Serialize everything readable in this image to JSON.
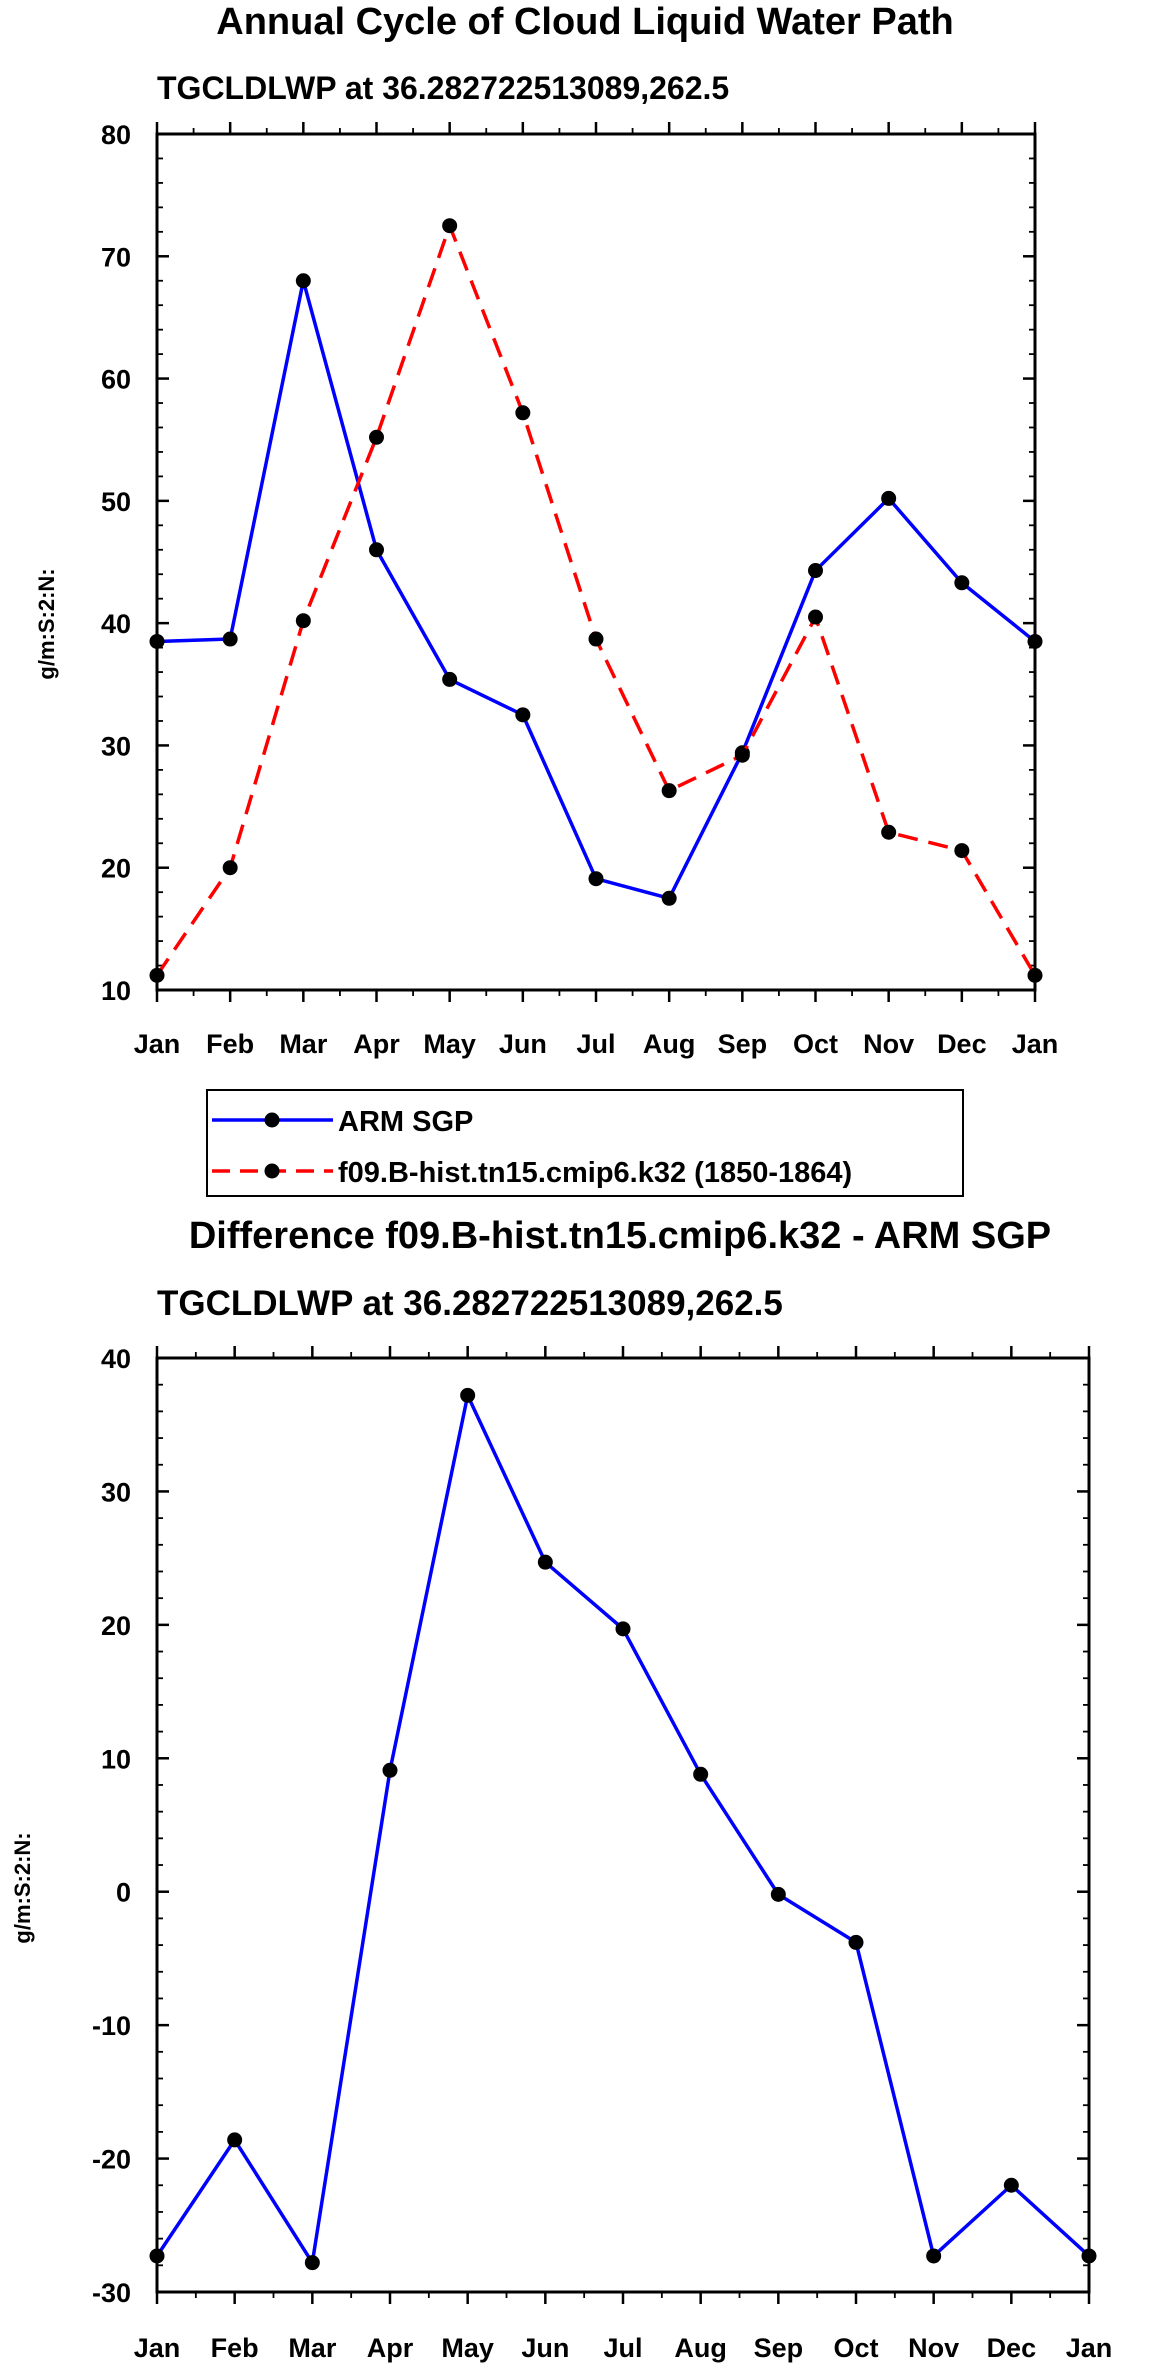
{
  "chart_data": [
    {
      "type": "line",
      "title": "Annual Cycle of Cloud Liquid Water Path",
      "subtitle": "TGCLDLWP at 36.282722513089,262.5",
      "xlabel": "",
      "ylabel": "g/m:S:2:N:",
      "ylim": [
        10,
        80
      ],
      "yticks": [
        "80",
        "70",
        "60",
        "50",
        "40",
        "30",
        "20",
        "10"
      ],
      "categories": [
        "Jan",
        "Feb",
        "Mar",
        "Apr",
        "May",
        "Jun",
        "Jul",
        "Aug",
        "Sep",
        "Oct",
        "Nov",
        "Dec",
        "Jan"
      ],
      "series": [
        {
          "name": "ARM SGP",
          "color": "#0000ff",
          "style": "solid",
          "values": [
            38.5,
            38.7,
            68.0,
            46.0,
            35.4,
            32.5,
            19.1,
            17.5,
            29.4,
            44.3,
            50.2,
            43.3,
            38.5
          ]
        },
        {
          "name": "f09.B-hist.tn15.cmip6.k32 (1850-1864)",
          "color": "#ff0000",
          "style": "dashed",
          "values": [
            11.2,
            20.0,
            40.2,
            55.2,
            72.5,
            57.2,
            38.7,
            26.3,
            29.2,
            40.5,
            22.9,
            21.4,
            11.2
          ]
        }
      ],
      "legend": [
        "ARM SGP",
        "f09.B-hist.tn15.cmip6.k32 (1850-1864)"
      ]
    },
    {
      "type": "line",
      "title": "Difference f09.B-hist.tn15.cmip6.k32 - ARM SGP",
      "subtitle": "TGCLDLWP at 36.282722513089,262.5",
      "xlabel": "",
      "ylabel": "g/m:S:2:N:",
      "ylim": [
        -30,
        40
      ],
      "yticks": [
        "40",
        "30",
        "20",
        "10",
        "0",
        "-10",
        "-20",
        "-30"
      ],
      "categories": [
        "Jan",
        "Feb",
        "Mar",
        "Apr",
        "May",
        "Jun",
        "Jul",
        "Aug",
        "Sep",
        "Oct",
        "Nov",
        "Dec",
        "Jan"
      ],
      "series": [
        {
          "name": "Difference",
          "color": "#0000ff",
          "style": "solid",
          "values": [
            -27.3,
            -18.6,
            -27.8,
            9.1,
            37.2,
            24.7,
            19.7,
            8.8,
            -0.2,
            -3.8,
            -27.3,
            -22.0,
            -27.3
          ]
        }
      ]
    }
  ]
}
